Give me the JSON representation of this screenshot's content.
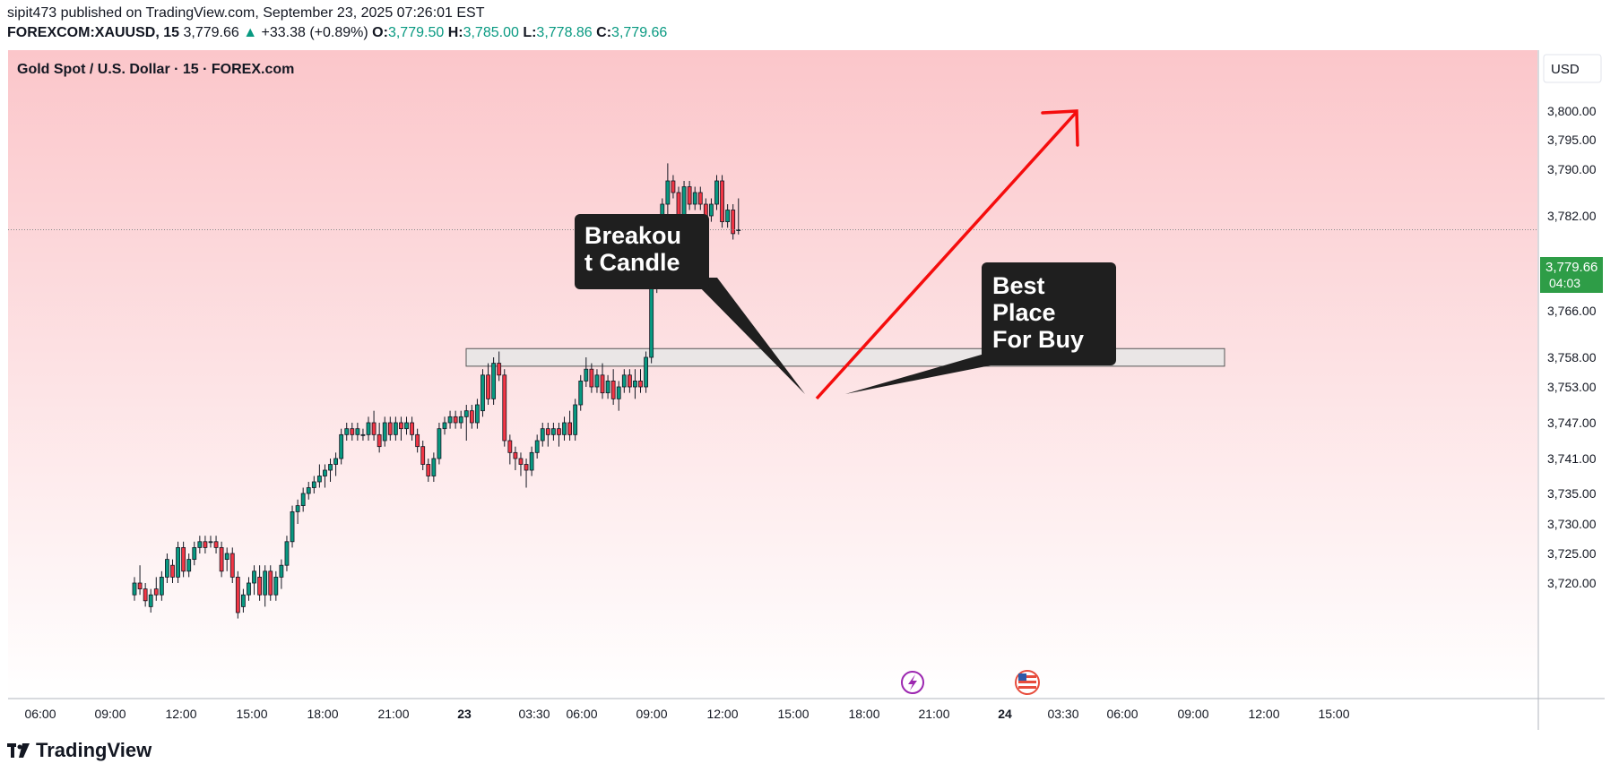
{
  "header": {
    "line1": "sipit473 published on TradingView.com, September 23, 2025 07:26:01 EST",
    "symbol": "FOREXCOM:XAUUSD, 15",
    "last": "3,779.66",
    "up_arrow": "▲",
    "change": "+33.38 (+0.89%)",
    "o_label": "O:",
    "o_value": "3,779.50",
    "h_label": "H:",
    "h_value": "3,785.00",
    "l_label": "L:",
    "l_value": "3,778.86",
    "c_label": "C:",
    "c_value": "3,779.66"
  },
  "chart_title": "Gold Spot / U.S. Dollar · 15 · FOREX.com",
  "currency_button": "USD",
  "price_badge": {
    "price": "3,779.66",
    "countdown": "04:03"
  },
  "annotations": {
    "breakout": [
      "Breakou",
      "t Candle"
    ],
    "best_place": [
      "Best",
      "Place",
      "For Buy"
    ]
  },
  "footer": {
    "brand": "TradingView"
  },
  "colors": {
    "up": "#089981",
    "down": "#f23645",
    "badge": "#2e9d47",
    "arrow": "#f50d0d",
    "bg_top": "#fbc6ca",
    "bg_bottom": "#ffffff"
  },
  "event_icons": [
    "lightning-icon",
    "us-flag-icon"
  ],
  "chart_data": {
    "type": "candlestick",
    "y_axis": {
      "ticks": [
        3720,
        3725,
        3730,
        3735,
        3741,
        3747,
        3753,
        3758,
        3766,
        3774,
        3782,
        3790,
        3795,
        3800
      ],
      "tick_labels": [
        "3,720.00",
        "3,725.00",
        "3,730.00",
        "3,735.00",
        "3,741.00",
        "3,747.00",
        "3,753.00",
        "3,758.00",
        "3,766.00",
        "3,774.00",
        "3,782.00",
        "3,790.00",
        "3,795.00",
        "3,800.00"
      ]
    },
    "x_axis": {
      "tick_labels": [
        "06:00",
        "09:00",
        "12:00",
        "15:00",
        "18:00",
        "21:00",
        "23",
        "03:30",
        "06:00",
        "09:00",
        "12:00",
        "15:00",
        "18:00",
        "21:00",
        "24",
        "03:30",
        "06:00",
        "09:00",
        "12:00",
        "15:00"
      ],
      "bold_labels": [
        "23",
        "24"
      ]
    },
    "last_price": 3779.66,
    "zone": {
      "low": 3756.5,
      "high": 3759.5
    },
    "candles": [
      [
        3718,
        3721,
        3717,
        3720
      ],
      [
        3720,
        3723,
        3718,
        3719
      ],
      [
        3719,
        3720,
        3716,
        3717
      ],
      [
        3716,
        3719,
        3715,
        3718
      ],
      [
        3719,
        3721,
        3717,
        3718
      ],
      [
        3718,
        3722,
        3717,
        3721
      ],
      [
        3721,
        3725,
        3720,
        3724
      ],
      [
        3723,
        3724,
        3720,
        3721
      ],
      [
        3721,
        3727,
        3720,
        3726
      ],
      [
        3726,
        3727,
        3721,
        3722
      ],
      [
        3722,
        3725,
        3721,
        3724
      ],
      [
        3724,
        3727,
        3723,
        3726
      ],
      [
        3726,
        3728,
        3725,
        3727
      ],
      [
        3727,
        3728,
        3725,
        3726
      ],
      [
        3727,
        3728,
        3726,
        3727
      ],
      [
        3727,
        3728,
        3725,
        3726
      ],
      [
        3726,
        3727,
        3721,
        3722
      ],
      [
        3724,
        3726,
        3722,
        3725
      ],
      [
        3725,
        3726,
        3720,
        3721
      ],
      [
        3721,
        3722,
        3714,
        3715
      ],
      [
        3716,
        3719,
        3715,
        3718
      ],
      [
        3718,
        3721,
        3717,
        3720
      ],
      [
        3720,
        3723,
        3718,
        3722
      ],
      [
        3721,
        3723,
        3717,
        3718
      ],
      [
        3718,
        3723,
        3716,
        3722
      ],
      [
        3722,
        3723,
        3717,
        3718
      ],
      [
        3718,
        3722,
        3717,
        3721
      ],
      [
        3721,
        3724,
        3719,
        3723
      ],
      [
        3723,
        3728,
        3722,
        3727
      ],
      [
        3727,
        3733,
        3726,
        3732
      ],
      [
        3732,
        3734,
        3730,
        3733
      ],
      [
        3733,
        3736,
        3732,
        3735
      ],
      [
        3735,
        3737,
        3734,
        3736
      ],
      [
        3736,
        3738,
        3735,
        3737
      ],
      [
        3737,
        3740,
        3736,
        3738
      ],
      [
        3738,
        3740,
        3736,
        3739
      ],
      [
        3739,
        3741,
        3737,
        3740
      ],
      [
        3740,
        3742,
        3738,
        3741
      ],
      [
        3741,
        3746,
        3740,
        3745
      ],
      [
        3745,
        3747,
        3744,
        3746
      ],
      [
        3746,
        3747,
        3744,
        3745
      ],
      [
        3745,
        3747,
        3744,
        3746
      ],
      [
        3745,
        3746,
        3744,
        3745
      ],
      [
        3745,
        3748,
        3744,
        3747
      ],
      [
        3747,
        3749,
        3744,
        3745
      ],
      [
        3745,
        3747,
        3742,
        3743
      ],
      [
        3744,
        3748,
        3743,
        3747
      ],
      [
        3747,
        3748,
        3744,
        3745
      ],
      [
        3745,
        3748,
        3744,
        3747
      ],
      [
        3747,
        3748,
        3744,
        3746
      ],
      [
        3746,
        3748,
        3745,
        3747
      ],
      [
        3747,
        3748,
        3744,
        3745
      ],
      [
        3745,
        3746,
        3742,
        3743
      ],
      [
        3743,
        3744,
        3739,
        3740
      ],
      [
        3740,
        3741,
        3737,
        3738
      ],
      [
        3738,
        3742,
        3737,
        3741
      ],
      [
        3741,
        3747,
        3740,
        3746
      ],
      [
        3746,
        3748,
        3745,
        3747
      ],
      [
        3747,
        3749,
        3746,
        3748
      ],
      [
        3748,
        3749,
        3746,
        3747
      ],
      [
        3747,
        3749,
        3746,
        3748
      ],
      [
        3748,
        3750,
        3744,
        3749
      ],
      [
        3749,
        3750,
        3746,
        3747
      ],
      [
        3747,
        3751,
        3746,
        3750
      ],
      [
        3749,
        3756,
        3748,
        3755
      ],
      [
        3755,
        3757,
        3750,
        3751
      ],
      [
        3751,
        3758,
        3750,
        3757
      ],
      [
        3757,
        3759,
        3754,
        3755
      ],
      [
        3755,
        3756,
        3743,
        3744
      ],
      [
        3744,
        3745,
        3740,
        3742
      ],
      [
        3742,
        3743,
        3739,
        3741
      ],
      [
        3741,
        3742,
        3738,
        3740
      ],
      [
        3740,
        3741,
        3736,
        3739
      ],
      [
        3739,
        3743,
        3738,
        3742
      ],
      [
        3742,
        3745,
        3741,
        3744
      ],
      [
        3744,
        3747,
        3743,
        3746
      ],
      [
        3746,
        3747,
        3743,
        3745
      ],
      [
        3745,
        3747,
        3744,
        3746
      ],
      [
        3746,
        3747,
        3743,
        3745
      ],
      [
        3745,
        3748,
        3744,
        3747
      ],
      [
        3747,
        3749,
        3744,
        3745
      ],
      [
        3745,
        3751,
        3744,
        3750
      ],
      [
        3750,
        3755,
        3749,
        3754
      ],
      [
        3754,
        3758,
        3753,
        3756
      ],
      [
        3756,
        3757,
        3752,
        3753
      ],
      [
        3753,
        3756,
        3752,
        3755
      ],
      [
        3755,
        3757,
        3751,
        3752
      ],
      [
        3752,
        3755,
        3751,
        3754
      ],
      [
        3754,
        3756,
        3750,
        3751
      ],
      [
        3751,
        3754,
        3749,
        3753
      ],
      [
        3753,
        3756,
        3752,
        3755
      ],
      [
        3755,
        3756,
        3752,
        3753
      ],
      [
        3753,
        3756,
        3751,
        3754
      ],
      [
        3754,
        3756,
        3752,
        3753
      ],
      [
        3753,
        3759,
        3752,
        3758
      ],
      [
        3758,
        3771,
        3757,
        3770
      ],
      [
        3770,
        3776,
        3769,
        3775
      ],
      [
        3775,
        3785,
        3774,
        3784
      ],
      [
        3784,
        3791,
        3782,
        3788
      ],
      [
        3788,
        3789,
        3785,
        3786
      ],
      [
        3786,
        3787,
        3779,
        3780
      ],
      [
        3780,
        3788,
        3779,
        3787
      ],
      [
        3787,
        3788,
        3783,
        3784
      ],
      [
        3784,
        3787,
        3783,
        3786
      ],
      [
        3786,
        3787,
        3783,
        3784
      ],
      [
        3784,
        3785,
        3781,
        3782
      ],
      [
        3782,
        3785,
        3781,
        3784
      ],
      [
        3784,
        3789,
        3783,
        3788
      ],
      [
        3788,
        3789,
        3780,
        3781
      ],
      [
        3781,
        3784,
        3780,
        3783
      ],
      [
        3783,
        3784,
        3778,
        3779
      ],
      [
        3779.5,
        3785,
        3778.86,
        3779.66
      ]
    ]
  }
}
